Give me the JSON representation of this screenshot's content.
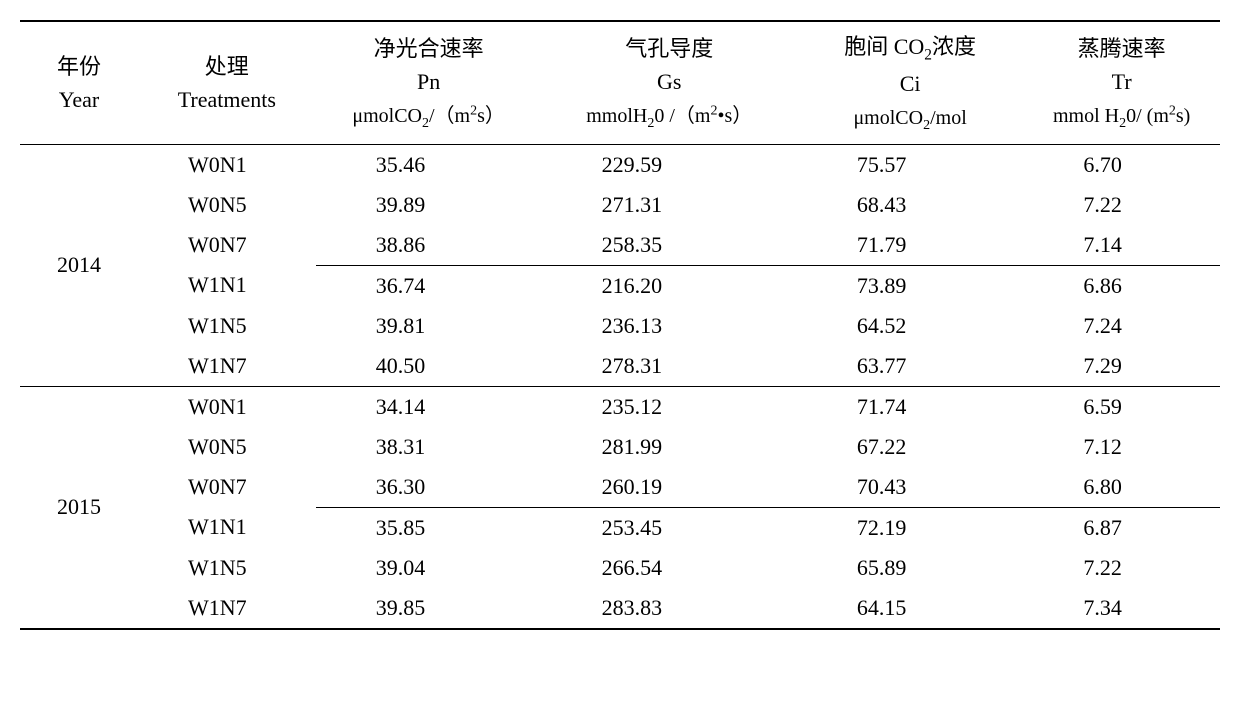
{
  "headers": {
    "year_cn": "年份",
    "year_en": "Year",
    "treatments_cn": "处理",
    "treatments_en": "Treatments",
    "pn_cn": "净光合速率",
    "pn_sym": "Pn",
    "pn_unit_prefix": "μmolCO",
    "pn_unit_suffix": "/（m",
    "pn_unit_end": "s）",
    "gs_cn": "气孔导度",
    "gs_sym": "Gs",
    "gs_unit_prefix": "mmolH",
    "gs_unit_mid": "0 /（m",
    "gs_unit_end": "•s）",
    "ci_cn_prefix": "胞间 CO",
    "ci_cn_suffix": "浓度",
    "ci_sym": "Ci",
    "ci_unit_prefix": "μmolCO",
    "ci_unit_end": "/mol",
    "tr_cn": "蒸腾速率",
    "tr_sym": "Tr",
    "tr_unit_prefix": "mmol H",
    "tr_unit_mid": "0/ (m",
    "tr_unit_end": "s)"
  },
  "years": [
    {
      "year": "2014",
      "groups": [
        [
          {
            "treatment": "W0N1",
            "pn": "35.46",
            "gs": "229.59",
            "ci": "75.57",
            "tr": "6.70"
          },
          {
            "treatment": "W0N5",
            "pn": "39.89",
            "gs": "271.31",
            "ci": "68.43",
            "tr": "7.22"
          },
          {
            "treatment": "W0N7",
            "pn": "38.86",
            "gs": "258.35",
            "ci": "71.79",
            "tr": "7.14"
          }
        ],
        [
          {
            "treatment": "W1N1",
            "pn": "36.74",
            "gs": "216.20",
            "ci": "73.89",
            "tr": "6.86"
          },
          {
            "treatment": "W1N5",
            "pn": "39.81",
            "gs": "236.13",
            "ci": "64.52",
            "tr": "7.24"
          },
          {
            "treatment": "W1N7",
            "pn": "40.50",
            "gs": "278.31",
            "ci": "63.77",
            "tr": "7.29"
          }
        ]
      ]
    },
    {
      "year": "2015",
      "groups": [
        [
          {
            "treatment": "W0N1",
            "pn": "34.14",
            "gs": "235.12",
            "ci": "71.74",
            "tr": "6.59"
          },
          {
            "treatment": "W0N5",
            "pn": "38.31",
            "gs": "281.99",
            "ci": "67.22",
            "tr": "7.12"
          },
          {
            "treatment": "W0N7",
            "pn": "36.30",
            "gs": "260.19",
            "ci": "70.43",
            "tr": "6.80"
          }
        ],
        [
          {
            "treatment": "W1N1",
            "pn": "35.85",
            "gs": "253.45",
            "ci": "72.19",
            "tr": "6.87"
          },
          {
            "treatment": "W1N5",
            "pn": "39.04",
            "gs": "266.54",
            "ci": "65.89",
            "tr": "7.22"
          },
          {
            "treatment": "W1N7",
            "pn": "39.85",
            "gs": "283.83",
            "ci": "64.15",
            "tr": "7.34"
          }
        ]
      ]
    }
  ],
  "layout": {
    "col_widths": [
      "120px",
      "180px",
      "230px",
      "260px",
      "230px",
      "200px"
    ],
    "font_size": 22,
    "unit_font_size": 20,
    "text_color": "#000000",
    "bg_color": "#ffffff",
    "border_color": "#000000"
  }
}
